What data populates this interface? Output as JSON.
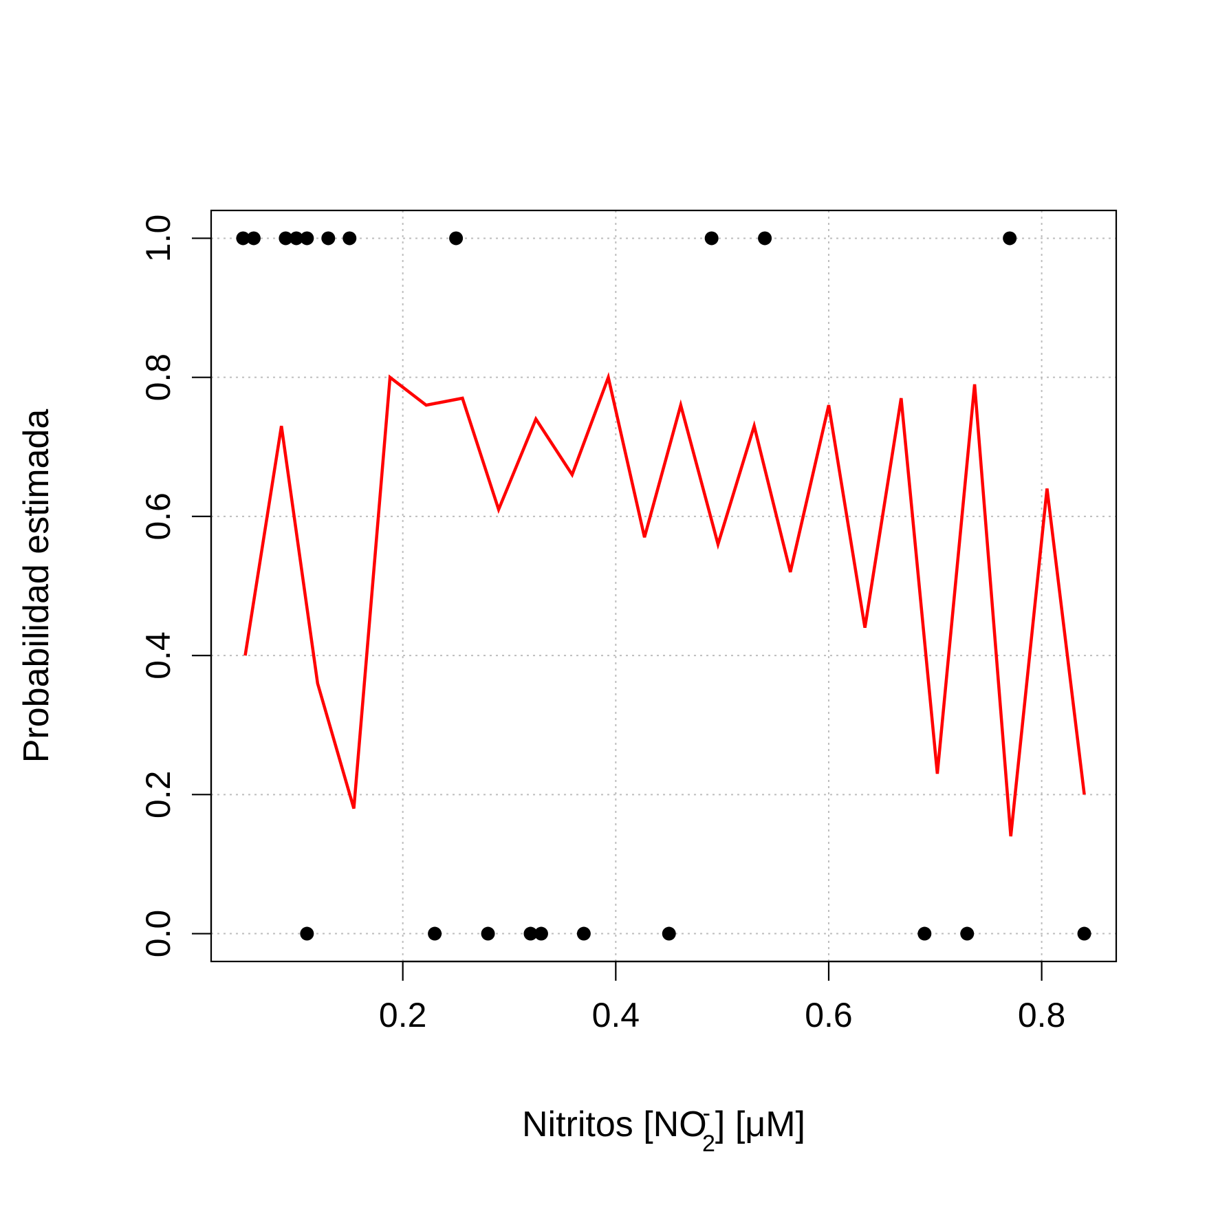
{
  "chart_data": {
    "type": "scatter",
    "title": "",
    "xlabel": {
      "main": "Nitritos [NO",
      "subscript": "2",
      "superscript": "-",
      "rest": "] [μM]"
    },
    "ylabel": "Probabilidad estimada",
    "xlim": [
      0.02,
      0.87
    ],
    "ylim": [
      -0.04,
      1.04
    ],
    "x_ticks": [
      0.2,
      0.4,
      0.6,
      0.8
    ],
    "x_tick_labels": [
      "0.2",
      "0.4",
      "0.6",
      "0.8"
    ],
    "y_ticks": [
      0.0,
      0.2,
      0.4,
      0.6,
      0.8,
      1.0
    ],
    "y_tick_labels": [
      "0.0",
      "0.2",
      "0.4",
      "0.6",
      "0.8",
      "1.0"
    ],
    "grid": true,
    "series": [
      {
        "kind": "points",
        "color": "#000000",
        "points": [
          {
            "x": 0.05,
            "y": 1
          },
          {
            "x": 0.06,
            "y": 1
          },
          {
            "x": 0.09,
            "y": 1
          },
          {
            "x": 0.1,
            "y": 1
          },
          {
            "x": 0.11,
            "y": 1
          },
          {
            "x": 0.13,
            "y": 1
          },
          {
            "x": 0.15,
            "y": 1
          },
          {
            "x": 0.25,
            "y": 1
          },
          {
            "x": 0.49,
            "y": 1
          },
          {
            "x": 0.54,
            "y": 1
          },
          {
            "x": 0.77,
            "y": 1
          },
          {
            "x": 0.11,
            "y": 0
          },
          {
            "x": 0.23,
            "y": 0
          },
          {
            "x": 0.28,
            "y": 0
          },
          {
            "x": 0.32,
            "y": 0
          },
          {
            "x": 0.33,
            "y": 0
          },
          {
            "x": 0.37,
            "y": 0
          },
          {
            "x": 0.45,
            "y": 0
          },
          {
            "x": 0.69,
            "y": 0
          },
          {
            "x": 0.73,
            "y": 0
          },
          {
            "x": 0.84,
            "y": 0
          }
        ]
      },
      {
        "kind": "line",
        "color": "#ff0000",
        "x": [
          0.052,
          0.086,
          0.12,
          0.154,
          0.188,
          0.222,
          0.256,
          0.29,
          0.325,
          0.359,
          0.393,
          0.427,
          0.461,
          0.496,
          0.53,
          0.564,
          0.6,
          0.634,
          0.668,
          0.702,
          0.737,
          0.771,
          0.805,
          0.84
        ],
        "y": [
          0.4,
          0.73,
          0.36,
          0.18,
          0.8,
          0.76,
          0.77,
          0.61,
          0.74,
          0.66,
          0.8,
          0.57,
          0.76,
          0.56,
          0.73,
          0.52,
          0.76,
          0.44,
          0.77,
          0.23,
          0.79,
          0.14,
          0.64,
          0.2
        ]
      }
    ]
  }
}
